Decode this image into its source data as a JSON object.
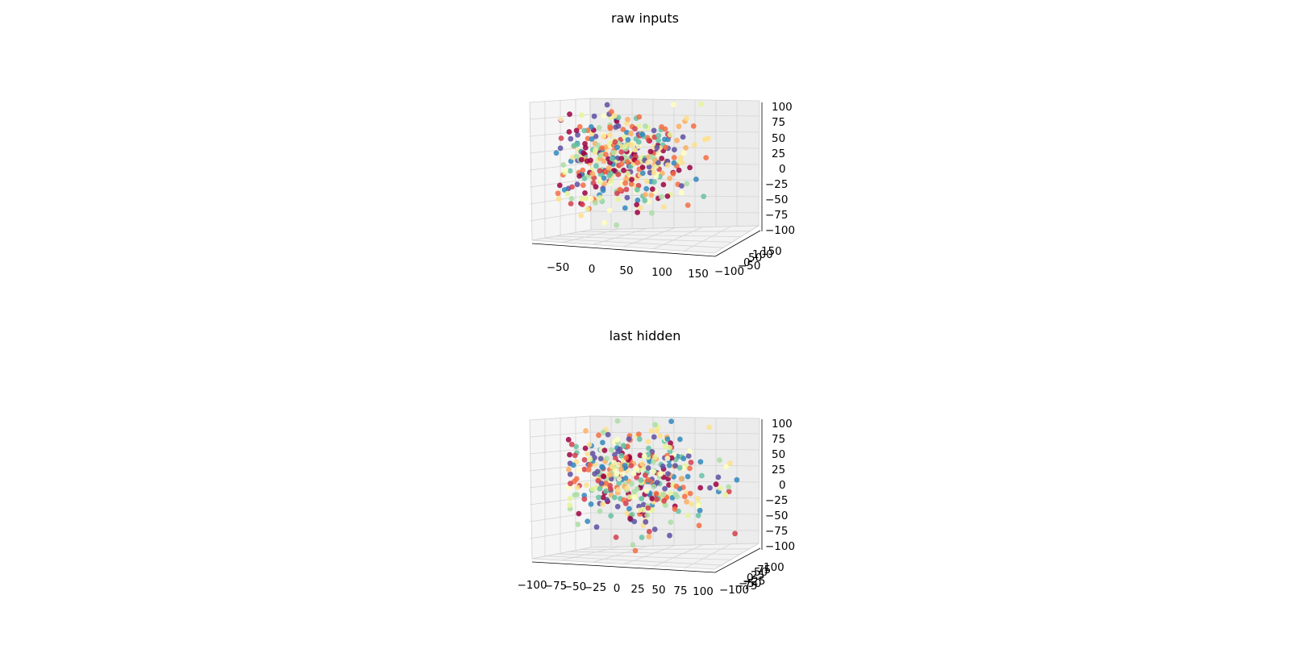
{
  "palette": [
    "#9e0142",
    "#d53e4f",
    "#f46d43",
    "#fdae61",
    "#fee08b",
    "#ffffbf",
    "#e6f598",
    "#abdda4",
    "#66c2a5",
    "#3288bd",
    "#5e4fa2"
  ],
  "chart_data": [
    {
      "type": "scatter",
      "title": "raw inputs",
      "grid": true,
      "point_count": 420,
      "x_ticks": [
        "−50",
        "0",
        "50",
        "100",
        "150"
      ],
      "y_ticks": [
        "−100",
        "−50",
        "0",
        "50",
        "100",
        "150"
      ],
      "z_ticks": [
        "100",
        "75",
        "50",
        "25",
        "0",
        "−25",
        "−50",
        "−75",
        "−100"
      ],
      "xlim": [
        -90,
        160
      ],
      "ylim": [
        -120,
        170
      ],
      "zlim": [
        -110,
        110
      ]
    },
    {
      "type": "scatter",
      "title": "last hidden",
      "grid": true,
      "point_count": 420,
      "x_ticks": [
        "−100",
        "−75",
        "−50",
        "−25",
        "0",
        "25",
        "50",
        "75",
        "100"
      ],
      "y_ticks": [
        "−100",
        "−75",
        "−50",
        "−25",
        "0",
        "25",
        "50",
        "75",
        "100"
      ],
      "z_ticks": [
        "100",
        "75",
        "50",
        "25",
        "0",
        "−25",
        "−50",
        "−75",
        "−100"
      ],
      "xlim": [
        -110,
        110
      ],
      "ylim": [
        -110,
        110
      ],
      "zlim": [
        -110,
        110
      ]
    }
  ]
}
